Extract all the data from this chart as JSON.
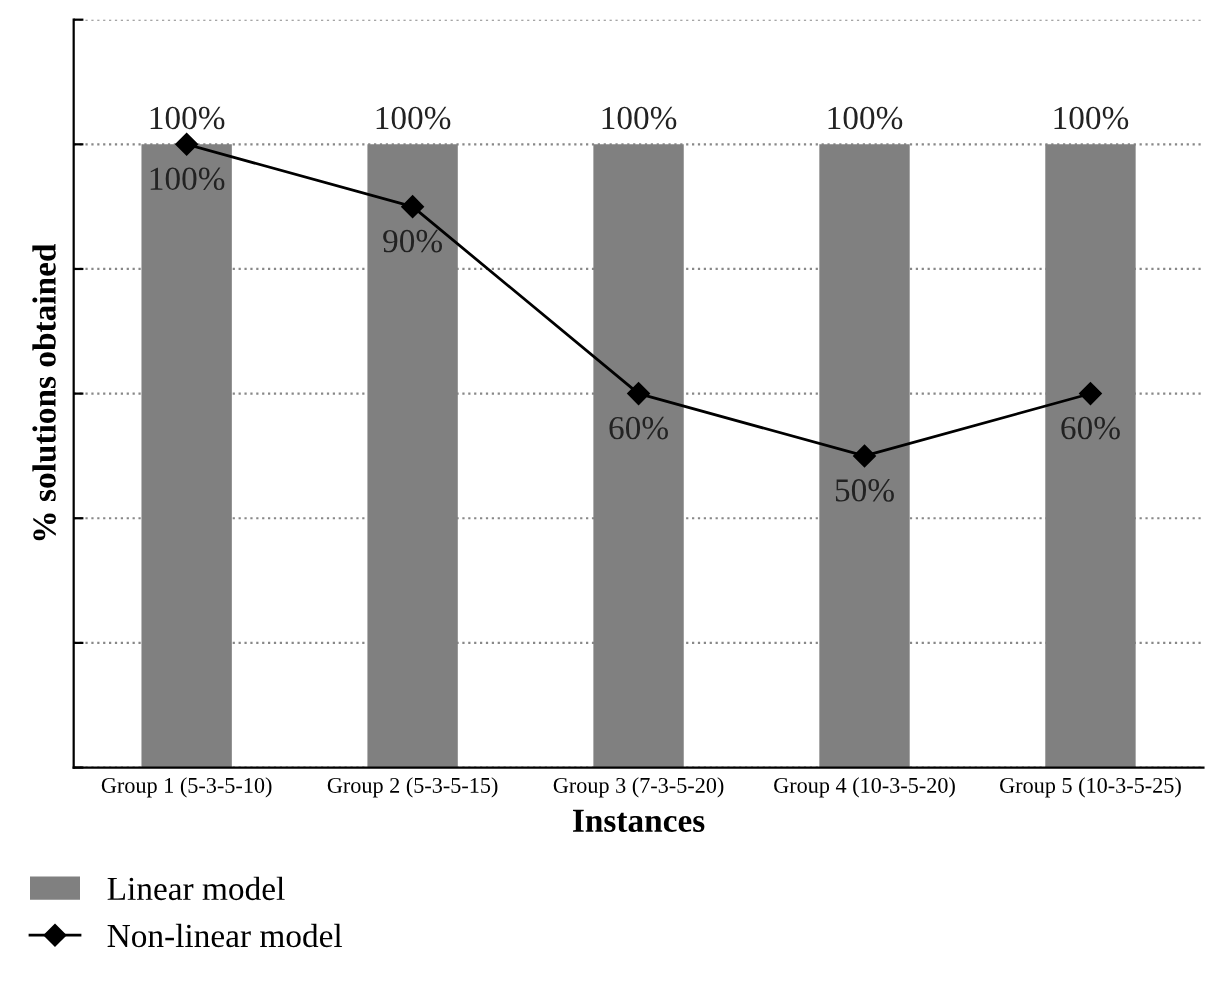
{
  "chart_data": {
    "type": "bar",
    "xlabel": "Instances",
    "ylabel": "% solutions obtained",
    "categories": [
      "Group 1 (5-3-5-10)",
      "Group 2 (5-3-5-15)",
      "Group 3 (7-3-5-20)",
      "Group 4 (10-3-5-20)",
      "Group 5 (10-3-5-25)"
    ],
    "series": [
      {
        "name": "Linear model",
        "color": "#808080",
        "values": [
          100,
          100,
          100,
          100,
          100
        ],
        "value_labels": [
          "100%",
          "100%",
          "100%",
          "100%",
          "100%"
        ]
      },
      {
        "name": "Non-linear model",
        "type": "line",
        "color": "#000000",
        "marker": "diamond",
        "line_style": "solid",
        "values": [
          100,
          90,
          60,
          50,
          60
        ],
        "value_labels": [
          "100%",
          "90%",
          "60%",
          "50%",
          "60%"
        ]
      }
    ],
    "ylim": [
      0,
      120
    ],
    "yticks": [
      {
        "value": 0,
        "label": null
      },
      {
        "value": 20,
        "label": null
      },
      {
        "value": 40,
        "label": null
      },
      {
        "value": 60,
        "label": null
      },
      {
        "value": 80,
        "label": null
      },
      {
        "value": 100,
        "label": null
      },
      {
        "value": 120,
        "label": null
      }
    ],
    "tick_labels": "x",
    "grid": "y",
    "legend": "bottom left"
  }
}
